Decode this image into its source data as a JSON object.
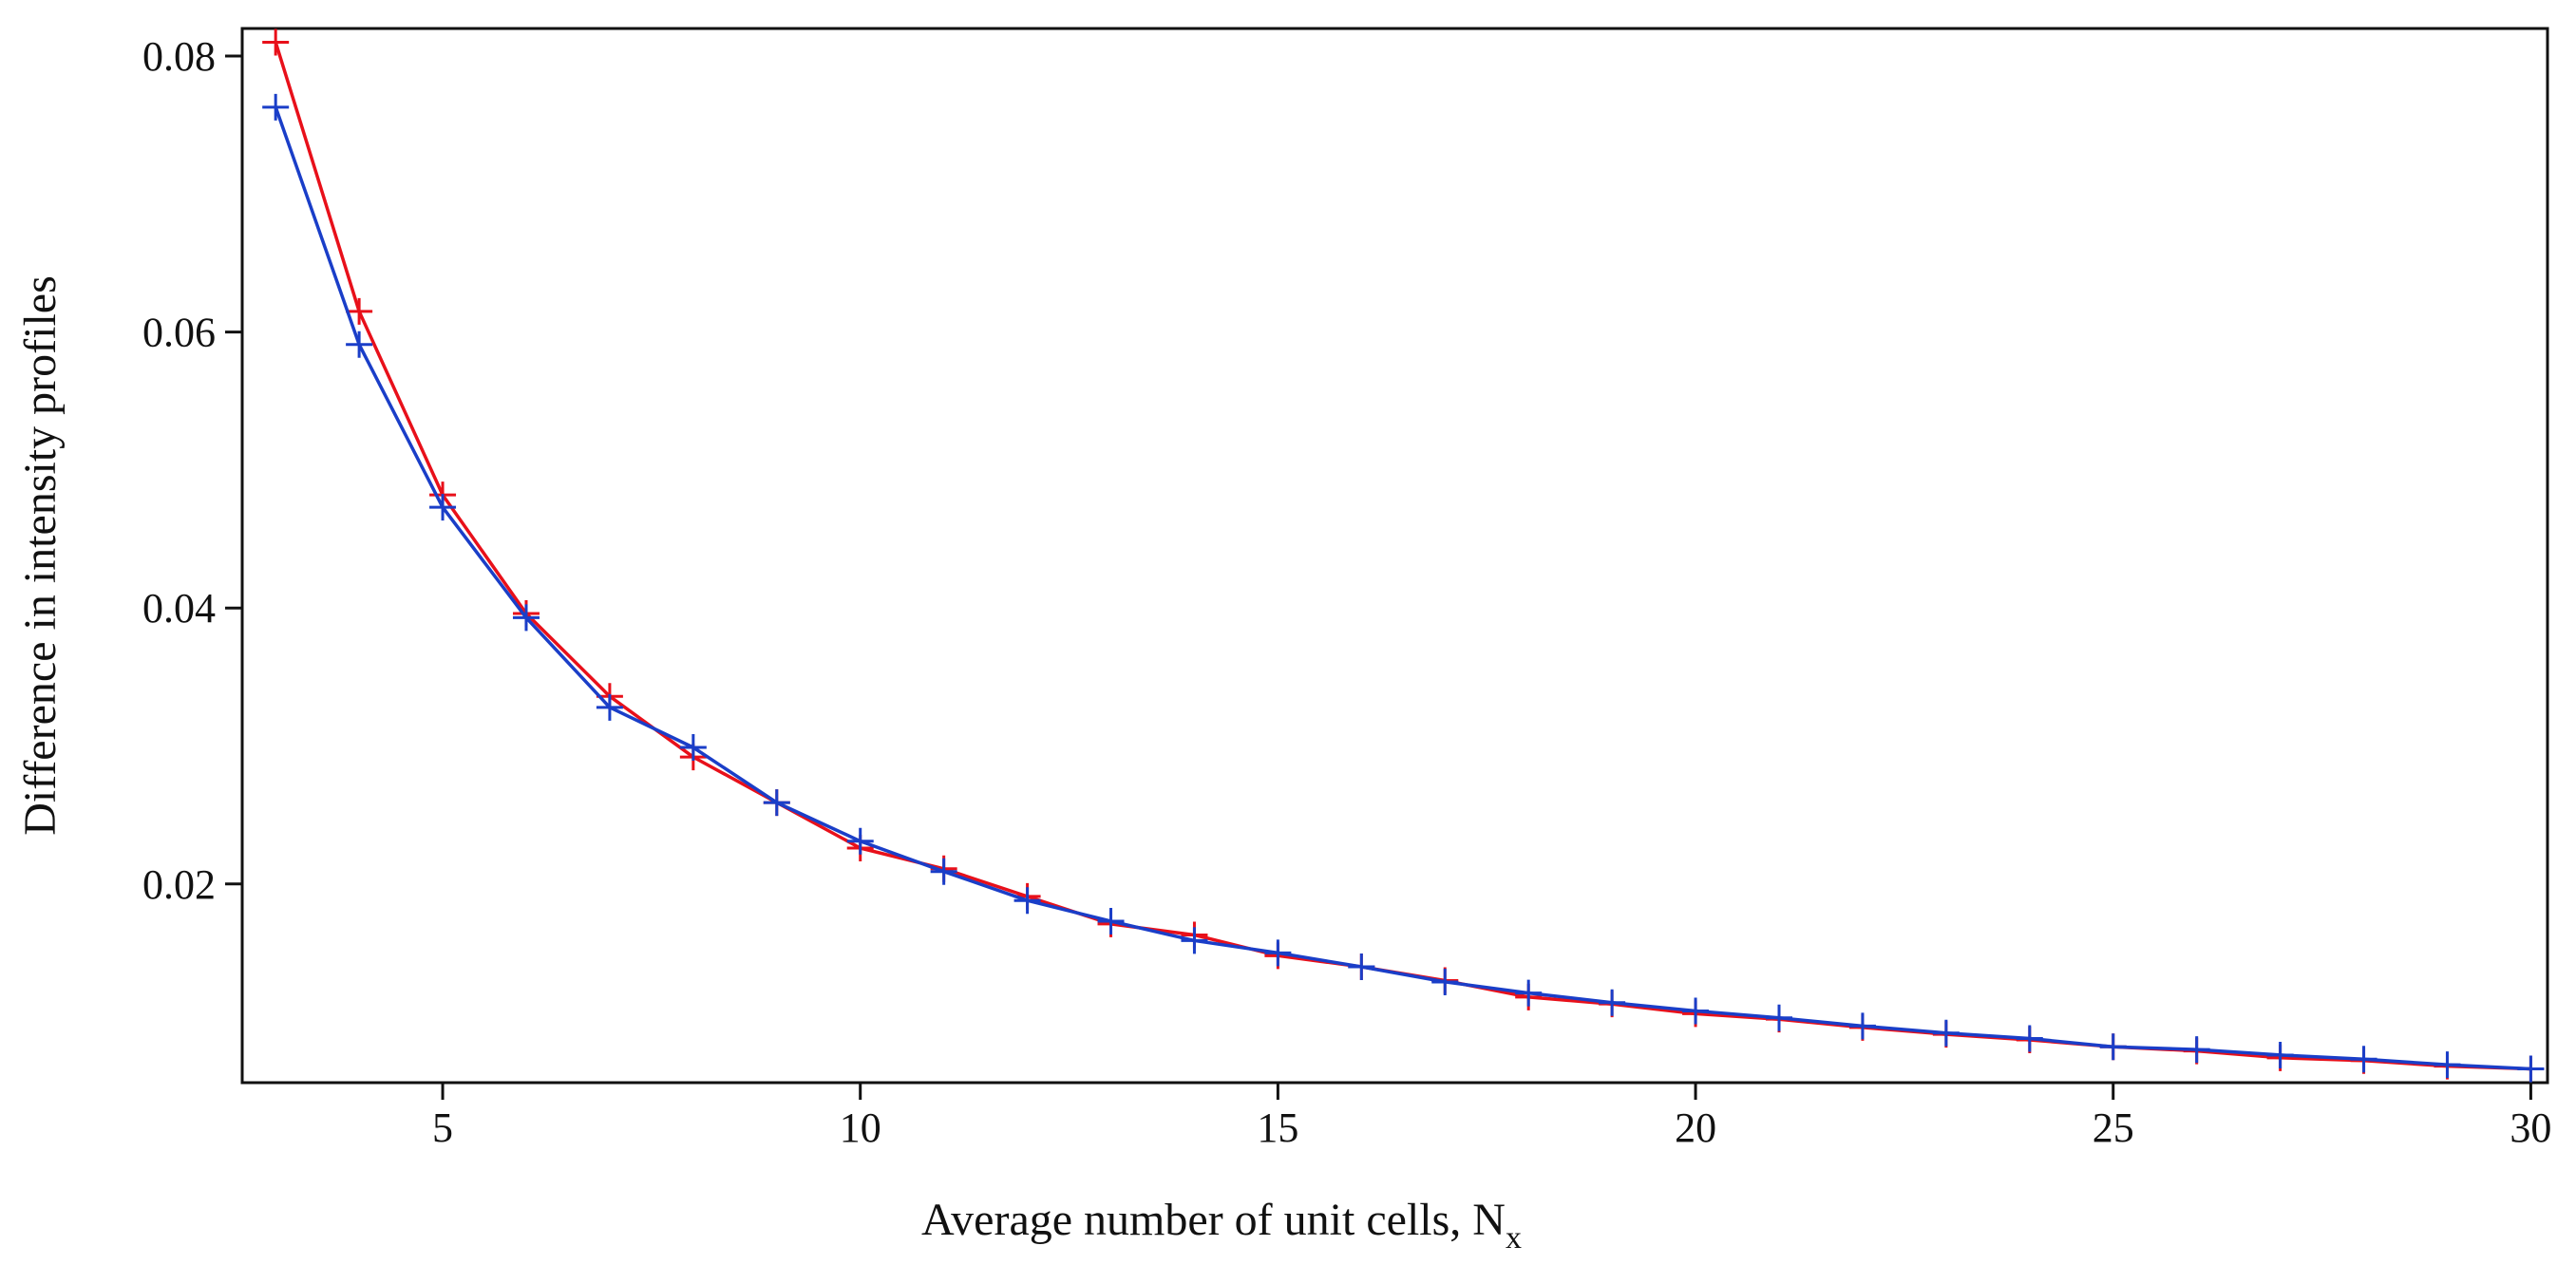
{
  "chart_data": {
    "type": "line",
    "title": "",
    "xlabel": "Average number of unit cells, N",
    "xlabel_subscript": "x",
    "ylabel": "Difference in intensity profiles",
    "xlim": [
      2.6,
      30.2
    ],
    "ylim": [
      0.0056,
      0.082
    ],
    "x_ticks": [
      5,
      10,
      15,
      20,
      25,
      30
    ],
    "x_tick_labels": [
      "5",
      "10",
      "15",
      "20",
      "25",
      "30"
    ],
    "y_ticks": [
      0.02,
      0.04,
      0.06,
      0.08
    ],
    "y_tick_labels": [
      "0.02",
      "0.04",
      "0.06",
      "0.08"
    ],
    "grid": false,
    "legend": "none",
    "x": [
      3,
      4,
      5,
      6,
      7,
      8,
      9,
      10,
      11,
      12,
      13,
      14,
      15,
      16,
      17,
      18,
      19,
      20,
      21,
      22,
      23,
      24,
      25,
      26,
      27,
      28,
      29,
      30
    ],
    "series": [
      {
        "name": "red",
        "color": "#e8101a",
        "marker": "plus",
        "values": [
          0.081,
          0.0615,
          0.0482,
          0.0396,
          0.0336,
          0.0292,
          0.0259,
          0.0226,
          0.0211,
          0.0191,
          0.0171,
          0.0163,
          0.0148,
          0.014,
          0.013,
          0.0118,
          0.0113,
          0.0106,
          0.0102,
          0.0096,
          0.0091,
          0.0087,
          0.0082,
          0.0079,
          0.0074,
          0.0072,
          0.0068,
          0.0066
        ]
      },
      {
        "name": "blue",
        "color": "#1a3ec8",
        "marker": "plus",
        "values": [
          0.0763,
          0.0591,
          0.0473,
          0.0393,
          0.0328,
          0.0299,
          0.0259,
          0.0231,
          0.0209,
          0.0188,
          0.0173,
          0.0159,
          0.015,
          0.014,
          0.0129,
          0.0121,
          0.0114,
          0.0108,
          0.0103,
          0.0097,
          0.0092,
          0.0088,
          0.0082,
          0.008,
          0.0076,
          0.0073,
          0.0069,
          0.0066
        ]
      }
    ]
  }
}
